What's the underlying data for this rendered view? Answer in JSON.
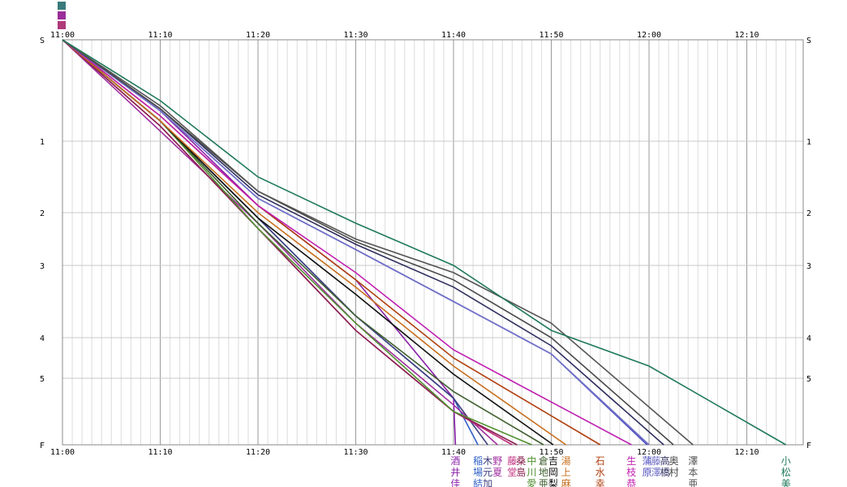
{
  "chart_data": {
    "type": "line",
    "title": "",
    "xlabel": "",
    "ylabel": "",
    "x_unit": "clock time (minutes after 11:00)",
    "xlim": [
      0,
      75
    ],
    "x_ticks": [
      {
        "label": "11:00",
        "v": 0
      },
      {
        "label": "11:10",
        "v": 10
      },
      {
        "label": "11:20",
        "v": 20
      },
      {
        "label": "11:30",
        "v": 30
      },
      {
        "label": "11:40",
        "v": 40
      },
      {
        "label": "11:50",
        "v": 50
      },
      {
        "label": "12:00",
        "v": 60
      },
      {
        "label": "12:10",
        "v": 70
      }
    ],
    "y_ticks": [
      {
        "label": "S",
        "pos": 0
      },
      {
        "label": "1",
        "pos": 1
      },
      {
        "label": "2",
        "pos": 2
      },
      {
        "label": "3",
        "pos": 3
      },
      {
        "label": "4",
        "pos": 4
      },
      {
        "label": "5",
        "pos": 5
      },
      {
        "label": "F",
        "pos": 6
      }
    ],
    "grid": true,
    "y_axis_both_sides": true,
    "x_axis_top_and_bottom": true,
    "legend_swatches": [
      "#3a7a7a",
      "#9a2e9a",
      "#b03a7a"
    ],
    "series": [
      {
        "name": "酒井佳",
        "color": "#8a1fa8",
        "points": [
          [
            0,
            0
          ],
          [
            10,
            0.7
          ],
          [
            20,
            1.9
          ],
          [
            30,
            3.2
          ],
          [
            40,
            5.3
          ],
          [
            40.2,
            6
          ]
        ]
      },
      {
        "name": "稲場結",
        "color": "#3060c8",
        "points": [
          [
            0,
            0
          ],
          [
            10,
            0.8
          ],
          [
            20,
            2.1
          ],
          [
            30,
            3.7
          ],
          [
            40,
            5.3
          ],
          [
            42.5,
            6
          ]
        ]
      },
      {
        "name": "木元加",
        "color": "#404080",
        "points": [
          [
            0,
            0
          ],
          [
            10,
            0.8
          ],
          [
            20,
            2.1
          ],
          [
            30,
            3.7
          ],
          [
            40,
            5.3
          ],
          [
            43.5,
            6
          ]
        ]
      },
      {
        "name": "野夏",
        "color": "#a030a0",
        "points": [
          [
            0,
            0
          ],
          [
            10,
            0.9
          ],
          [
            20,
            2.2
          ],
          [
            30,
            3.8
          ],
          [
            40,
            5.4
          ],
          [
            44.5,
            6
          ]
        ]
      },
      {
        "name": "藤堂",
        "color": "#c03080",
        "points": [
          [
            0,
            0
          ],
          [
            10,
            0.85
          ],
          [
            20,
            2.3
          ],
          [
            30,
            3.9
          ],
          [
            40,
            5.5
          ],
          [
            46,
            6
          ]
        ]
      },
      {
        "name": "桑島",
        "color": "#8a2050",
        "points": [
          [
            0,
            0
          ],
          [
            10,
            0.85
          ],
          [
            20,
            2.3
          ],
          [
            30,
            3.9
          ],
          [
            40,
            5.5
          ],
          [
            46.5,
            6
          ]
        ]
      },
      {
        "name": "中川愛",
        "color": "#509030",
        "points": [
          [
            0,
            0
          ],
          [
            10,
            0.8
          ],
          [
            20,
            2.3
          ],
          [
            30,
            3.8
          ],
          [
            40,
            5.5
          ],
          [
            48,
            6
          ]
        ]
      },
      {
        "name": "倉地亜",
        "color": "#406030",
        "points": [
          [
            0,
            0
          ],
          [
            10,
            0.8
          ],
          [
            20,
            2.2
          ],
          [
            30,
            3.7
          ],
          [
            40,
            5.2
          ],
          [
            49.2,
            6
          ]
        ]
      },
      {
        "name": "吉岡梨",
        "color": "#101010",
        "points": [
          [
            0,
            0
          ],
          [
            10,
            0.8
          ],
          [
            20,
            2.1
          ],
          [
            30,
            3.4
          ],
          [
            40,
            4.9
          ],
          [
            50.2,
            6
          ]
        ]
      },
      {
        "name": "湯上麻",
        "color": "#c87020",
        "points": [
          [
            0,
            0
          ],
          [
            10,
            0.8
          ],
          [
            20,
            2.0
          ],
          [
            30,
            3.3
          ],
          [
            40,
            4.7
          ],
          [
            51.5,
            6
          ]
        ]
      },
      {
        "name": "石水幸",
        "color": "#b04010",
        "points": [
          [
            0,
            0
          ],
          [
            10,
            0.75
          ],
          [
            20,
            1.9
          ],
          [
            30,
            3.2
          ],
          [
            40,
            4.5
          ],
          [
            55,
            6
          ]
        ]
      },
      {
        "name": "生枝恭",
        "color": "#c020b0",
        "points": [
          [
            0,
            0
          ],
          [
            10,
            0.75
          ],
          [
            20,
            1.9
          ],
          [
            30,
            3.1
          ],
          [
            40,
            4.3
          ],
          [
            58.2,
            6
          ]
        ]
      },
      {
        "name": "蒲原",
        "color": "#5050c0",
        "points": [
          [
            0,
            0
          ],
          [
            10,
            0.7
          ],
          [
            20,
            1.8
          ],
          [
            30,
            2.7
          ],
          [
            40,
            3.5
          ],
          [
            50,
            4.4
          ],
          [
            59.8,
            6
          ]
        ]
      },
      {
        "name": "藤澤",
        "color": "#7070c8",
        "points": [
          [
            0,
            0
          ],
          [
            10,
            0.7
          ],
          [
            20,
            1.8
          ],
          [
            30,
            2.7
          ],
          [
            40,
            3.5
          ],
          [
            50,
            4.4
          ],
          [
            60,
            6
          ]
        ]
      },
      {
        "name": "高橋",
        "color": "#303060",
        "points": [
          [
            0,
            0
          ],
          [
            10,
            0.68
          ],
          [
            20,
            1.75
          ],
          [
            30,
            2.6
          ],
          [
            40,
            3.3
          ],
          [
            50,
            4.2
          ],
          [
            61.5,
            6
          ]
        ]
      },
      {
        "name": "奥村",
        "color": "#484848",
        "points": [
          [
            0,
            0
          ],
          [
            10,
            0.68
          ],
          [
            20,
            1.7
          ],
          [
            30,
            2.55
          ],
          [
            40,
            3.2
          ],
          [
            50,
            4.0
          ],
          [
            62.5,
            6
          ]
        ]
      },
      {
        "name": "澤本亜",
        "color": "#555555",
        "points": [
          [
            0,
            0
          ],
          [
            10,
            0.65
          ],
          [
            20,
            1.7
          ],
          [
            30,
            2.5
          ],
          [
            40,
            3.1
          ],
          [
            50,
            3.8
          ],
          [
            64.5,
            6
          ]
        ]
      },
      {
        "name": "小松美",
        "color": "#207a5a",
        "points": [
          [
            0,
            0
          ],
          [
            10,
            0.6
          ],
          [
            20,
            1.5
          ],
          [
            30,
            2.2
          ],
          [
            40,
            3.0
          ],
          [
            50,
            3.9
          ],
          [
            60,
            4.7
          ],
          [
            74,
            6
          ]
        ]
      }
    ]
  }
}
